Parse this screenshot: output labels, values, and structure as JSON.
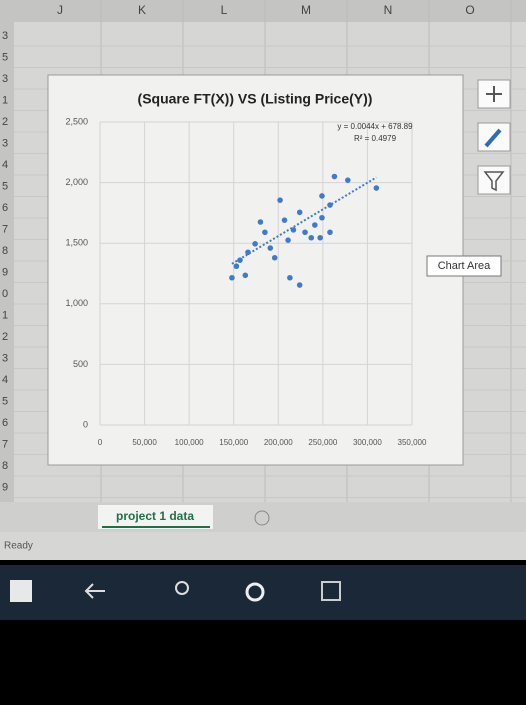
{
  "ui": {
    "columns": [
      "J",
      "K",
      "L",
      "M",
      "N",
      "O"
    ],
    "rows": [
      "3",
      "5",
      "3",
      "1",
      "2",
      "3",
      "4",
      "5",
      "6",
      "7",
      "8",
      "9",
      "0",
      "1",
      "2",
      "3",
      "4",
      "5",
      "6",
      "7",
      "8",
      "9"
    ],
    "tooltip": "Chart Area",
    "sheet_tab": "project 1 data",
    "status": "Ready"
  },
  "chart_data": {
    "type": "scatter",
    "title": "(Square FT(X)) VS (Listing Price(Y))",
    "annotations": [
      "y = 0.0044x + 678.89",
      "R² = 0.4979"
    ],
    "series": [
      {
        "color": "#3e7cc9",
        "x": [
          263000,
          278000,
          310000,
          249000,
          258000,
          202000,
          224000,
          180000,
          207000,
          249000,
          241000,
          217000,
          230000,
          258000,
          237000,
          211000,
          191000,
          166000,
          174000,
          157000,
          153000,
          148000,
          163000,
          213000,
          196000,
          224000,
          247000,
          185000
        ],
        "values": [
          2050,
          2020,
          1955,
          1890,
          1815,
          1855,
          1755,
          1675,
          1690,
          1710,
          1650,
          1610,
          1590,
          1590,
          1545,
          1525,
          1460,
          1425,
          1495,
          1360,
          1310,
          1215,
          1235,
          1215,
          1380,
          1155,
          1545,
          1590
        ]
      }
    ],
    "trendline": {
      "color": "#3e7cc9",
      "x": [
        148000,
        310000
      ],
      "values": [
        1330,
        2043
      ]
    },
    "xlim": [
      0,
      350000
    ],
    "ylim": [
      0,
      2500
    ],
    "xticks": [
      0,
      {
        "value": 50000,
        "label": "50,000"
      },
      {
        "value": 100000,
        "label": "100,000"
      },
      {
        "value": 150000,
        "label": "150,000"
      },
      {
        "value": 200000,
        "label": "200,000"
      },
      {
        "value": 250000,
        "label": "250,000"
      },
      {
        "value": 300000,
        "label": "300,000"
      },
      {
        "value": 350000,
        "label": "350,000"
      }
    ],
    "yticks": [
      0,
      500,
      {
        "value": 1000,
        "label": "1,000"
      },
      {
        "value": 1500,
        "label": "1,500"
      },
      {
        "value": 2000,
        "label": "2,000"
      },
      {
        "value": 2500,
        "label": "2,500"
      }
    ],
    "grid": true
  }
}
